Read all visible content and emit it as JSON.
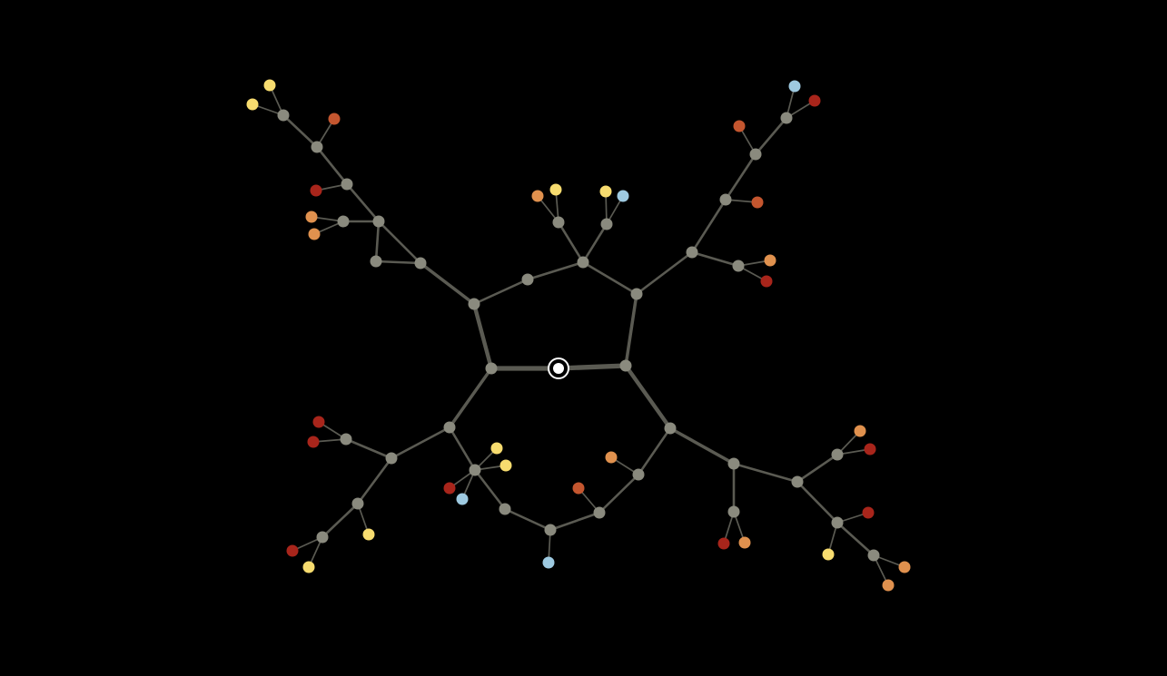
{
  "colors": {
    "background": "#000000",
    "edge": "#5a5a52",
    "inner_node": "#8a8a7e",
    "leaf_yellow": "#f7dc6f",
    "leaf_blue": "#9ecae1",
    "leaf_orange": "#e0914e",
    "leaf_rust": "#c4562f",
    "leaf_red": "#a8251b",
    "root": "#ffffff"
  },
  "graph": {
    "root": "center",
    "nodes": [
      {
        "id": "center",
        "kind": "root"
      },
      {
        "id": "c1",
        "kind": "inner"
      },
      {
        "id": "c2",
        "kind": "inner"
      },
      {
        "id": "c3",
        "kind": "inner"
      },
      {
        "id": "c4",
        "kind": "inner"
      },
      {
        "id": "c5",
        "kind": "inner"
      },
      {
        "id": "c6",
        "kind": "inner"
      },
      {
        "id": "t1",
        "kind": "inner"
      },
      {
        "id": "t2",
        "kind": "inner"
      },
      {
        "id": "ty1",
        "kind": "yellow"
      },
      {
        "id": "to1",
        "kind": "orange"
      },
      {
        "id": "ty2",
        "kind": "yellow"
      },
      {
        "id": "tb1",
        "kind": "blue"
      },
      {
        "id": "l1",
        "kind": "inner"
      },
      {
        "id": "l2",
        "kind": "inner"
      },
      {
        "id": "l3",
        "kind": "inner"
      },
      {
        "id": "l4",
        "kind": "inner"
      },
      {
        "id": "l5",
        "kind": "inner"
      },
      {
        "id": "l6",
        "kind": "inner"
      },
      {
        "id": "l7",
        "kind": "inner"
      },
      {
        "id": "lr1",
        "kind": "red"
      },
      {
        "id": "lo1",
        "kind": "orange"
      },
      {
        "id": "lo2",
        "kind": "orange"
      },
      {
        "id": "lrs1",
        "kind": "rust"
      },
      {
        "id": "ly1",
        "kind": "yellow"
      },
      {
        "id": "ly2",
        "kind": "yellow"
      },
      {
        "id": "r1",
        "kind": "inner"
      },
      {
        "id": "r2",
        "kind": "inner"
      },
      {
        "id": "r3",
        "kind": "inner"
      },
      {
        "id": "r4",
        "kind": "inner"
      },
      {
        "id": "r5",
        "kind": "inner"
      },
      {
        "id": "ro1",
        "kind": "orange"
      },
      {
        "id": "rr1",
        "kind": "red"
      },
      {
        "id": "rrs1",
        "kind": "rust"
      },
      {
        "id": "rrs2",
        "kind": "rust"
      },
      {
        "id": "rb1",
        "kind": "blue"
      },
      {
        "id": "rr2",
        "kind": "red"
      },
      {
        "id": "b1",
        "kind": "inner"
      },
      {
        "id": "b2",
        "kind": "inner"
      },
      {
        "id": "b3",
        "kind": "inner"
      },
      {
        "id": "b4",
        "kind": "inner"
      },
      {
        "id": "b5",
        "kind": "inner"
      },
      {
        "id": "b6",
        "kind": "inner"
      },
      {
        "id": "b7",
        "kind": "inner"
      },
      {
        "id": "b8",
        "kind": "inner"
      },
      {
        "id": "b9",
        "kind": "inner"
      },
      {
        "id": "by1",
        "kind": "yellow"
      },
      {
        "id": "by2",
        "kind": "yellow"
      },
      {
        "id": "bb1",
        "kind": "blue"
      },
      {
        "id": "br1",
        "kind": "red"
      },
      {
        "id": "bb2",
        "kind": "blue"
      },
      {
        "id": "bro1",
        "kind": "rust"
      },
      {
        "id": "bo1",
        "kind": "orange"
      },
      {
        "id": "br2",
        "kind": "red"
      },
      {
        "id": "br3",
        "kind": "red"
      },
      {
        "id": "by3",
        "kind": "yellow"
      },
      {
        "id": "br4",
        "kind": "red"
      },
      {
        "id": "by4",
        "kind": "yellow"
      },
      {
        "id": "e1",
        "kind": "inner"
      },
      {
        "id": "e2",
        "kind": "inner"
      },
      {
        "id": "e3",
        "kind": "inner"
      },
      {
        "id": "e4",
        "kind": "inner"
      },
      {
        "id": "e5",
        "kind": "inner"
      },
      {
        "id": "e6",
        "kind": "inner"
      },
      {
        "id": "er1",
        "kind": "red"
      },
      {
        "id": "eo1",
        "kind": "orange"
      },
      {
        "id": "eo2",
        "kind": "orange"
      },
      {
        "id": "er2",
        "kind": "red"
      },
      {
        "id": "er3",
        "kind": "red"
      },
      {
        "id": "ey1",
        "kind": "yellow"
      },
      {
        "id": "eo3",
        "kind": "orange"
      },
      {
        "id": "eo4",
        "kind": "orange"
      }
    ],
    "edges": [
      {
        "s": "center",
        "t": "c5",
        "w": 5
      },
      {
        "s": "center",
        "t": "c6",
        "w": 5
      },
      {
        "s": "c6",
        "t": "c1",
        "w": 4
      },
      {
        "s": "c1",
        "t": "c2",
        "w": 2
      },
      {
        "s": "c2",
        "t": "c3",
        "w": 2
      },
      {
        "s": "c3",
        "t": "c4",
        "w": 2
      },
      {
        "s": "c4",
        "t": "c5",
        "w": 3
      },
      {
        "s": "c3",
        "t": "t1",
        "w": 2
      },
      {
        "s": "c3",
        "t": "t2",
        "w": 2
      },
      {
        "s": "t1",
        "t": "ty1",
        "w": 1
      },
      {
        "s": "t1",
        "t": "to1",
        "w": 1
      },
      {
        "s": "t2",
        "t": "ty2",
        "w": 1
      },
      {
        "s": "t2",
        "t": "tb1",
        "w": 1
      },
      {
        "s": "c1",
        "t": "l1",
        "w": 3
      },
      {
        "s": "l1",
        "t": "l2",
        "w": 2
      },
      {
        "s": "l1",
        "t": "l3",
        "w": 2
      },
      {
        "s": "l2",
        "t": "l3",
        "w": 2
      },
      {
        "s": "l3",
        "t": "l4",
        "w": 2
      },
      {
        "s": "l3",
        "t": "l5",
        "w": 2
      },
      {
        "s": "l4",
        "t": "lo1",
        "w": 1
      },
      {
        "s": "l4",
        "t": "lo2",
        "w": 1
      },
      {
        "s": "l5",
        "t": "lr1",
        "w": 1
      },
      {
        "s": "l5",
        "t": "l6",
        "w": 2
      },
      {
        "s": "l6",
        "t": "lrs1",
        "w": 1
      },
      {
        "s": "l6",
        "t": "l7",
        "w": 2
      },
      {
        "s": "l7",
        "t": "ly1",
        "w": 1
      },
      {
        "s": "l7",
        "t": "ly2",
        "w": 1
      },
      {
        "s": "c4",
        "t": "r1",
        "w": 2
      },
      {
        "s": "r1",
        "t": "r2",
        "w": 2
      },
      {
        "s": "r1",
        "t": "r3",
        "w": 2
      },
      {
        "s": "r2",
        "t": "ro1",
        "w": 1
      },
      {
        "s": "r2",
        "t": "rr1",
        "w": 1
      },
      {
        "s": "r3",
        "t": "rrs1",
        "w": 1
      },
      {
        "s": "r3",
        "t": "r4",
        "w": 2
      },
      {
        "s": "r4",
        "t": "rrs2",
        "w": 1
      },
      {
        "s": "r4",
        "t": "r5",
        "w": 2
      },
      {
        "s": "r5",
        "t": "rb1",
        "w": 1
      },
      {
        "s": "r5",
        "t": "rr2",
        "w": 1
      },
      {
        "s": "c6",
        "t": "b1",
        "w": 3
      },
      {
        "s": "b1",
        "t": "b2",
        "w": 2
      },
      {
        "s": "b1",
        "t": "b6",
        "w": 2
      },
      {
        "s": "b2",
        "t": "by1",
        "w": 1
      },
      {
        "s": "b2",
        "t": "by2",
        "w": 1
      },
      {
        "s": "b2",
        "t": "br1",
        "w": 1
      },
      {
        "s": "b2",
        "t": "bb2",
        "w": 1
      },
      {
        "s": "b2",
        "t": "b3",
        "w": 2
      },
      {
        "s": "b3",
        "t": "b4",
        "w": 2
      },
      {
        "s": "b4",
        "t": "bb1",
        "w": 1
      },
      {
        "s": "b4",
        "t": "b5",
        "w": 2
      },
      {
        "s": "b5",
        "t": "b9",
        "w": 2
      },
      {
        "s": "b5",
        "t": "bro1",
        "w": 1
      },
      {
        "s": "b9",
        "t": "bo1",
        "w": 1
      },
      {
        "s": "b9",
        "t": "e1",
        "w": 2
      },
      {
        "s": "b6",
        "t": "b7",
        "w": 2
      },
      {
        "s": "b6",
        "t": "b8",
        "w": 2
      },
      {
        "s": "b7",
        "t": "br2",
        "w": 1
      },
      {
        "s": "b7",
        "t": "br3",
        "w": 1
      },
      {
        "s": "b8",
        "t": "by3",
        "w": 1
      },
      {
        "s": "b8",
        "t": "e0",
        "w": 2
      },
      {
        "s": "c5",
        "t": "e1",
        "w": 4
      },
      {
        "s": "e1",
        "t": "e2",
        "w": 3
      },
      {
        "s": "e2",
        "t": "e3",
        "w": 2
      },
      {
        "s": "e2",
        "t": "e4",
        "w": 2
      },
      {
        "s": "e3",
        "t": "er1",
        "w": 1
      },
      {
        "s": "e3",
        "t": "eo1",
        "w": 1
      },
      {
        "s": "e4",
        "t": "e5",
        "w": 2
      },
      {
        "s": "e4",
        "t": "e6",
        "w": 2
      },
      {
        "s": "e5",
        "t": "eo2",
        "w": 1
      },
      {
        "s": "e5",
        "t": "er2",
        "w": 1
      },
      {
        "s": "e6",
        "t": "er3",
        "w": 1
      },
      {
        "s": "e6",
        "t": "ey1",
        "w": 1
      },
      {
        "s": "e6",
        "t": "e7",
        "w": 2
      },
      {
        "s": "e7",
        "t": "eo3",
        "w": 1
      },
      {
        "s": "e7",
        "t": "eo4",
        "w": 1
      },
      {
        "s": "e0",
        "t": "br4",
        "w": 1
      },
      {
        "s": "e0",
        "t": "by4",
        "w": 1
      }
    ]
  }
}
